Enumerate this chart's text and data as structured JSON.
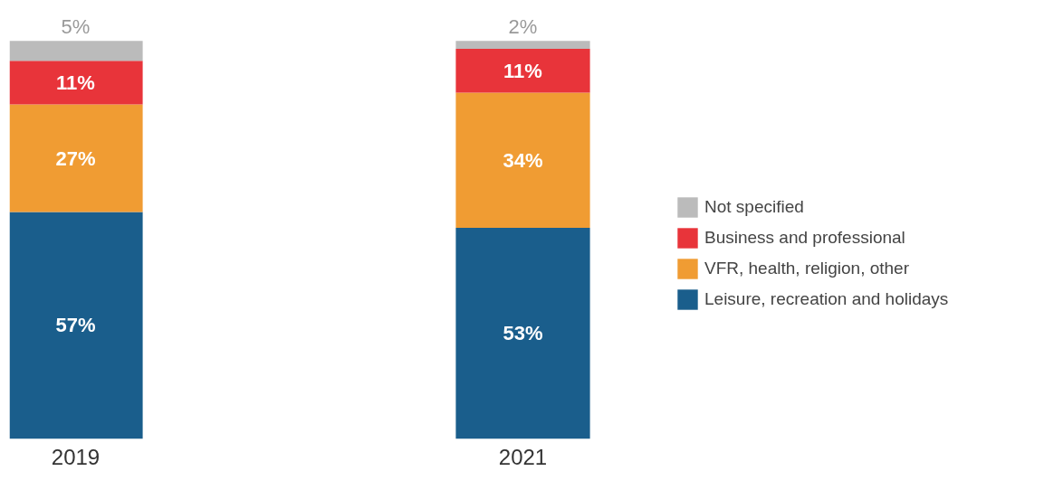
{
  "chart_data": {
    "type": "bar",
    "stacked": true,
    "categories": [
      "2019",
      "2021"
    ],
    "series": [
      {
        "name": "Leisure, recreation and holidays",
        "color": "#1a5e8c",
        "values": [
          57,
          53
        ],
        "value_labels": [
          "57%",
          "53%"
        ]
      },
      {
        "name": "VFR, health, religion, other",
        "color": "#f09c33",
        "values": [
          27,
          34
        ],
        "value_labels": [
          "27%",
          "34%"
        ]
      },
      {
        "name": "Business and professional",
        "color": "#e8343a",
        "values": [
          11,
          11
        ],
        "value_labels": [
          "11%",
          "11%"
        ]
      },
      {
        "name": "Not specified",
        "color": "#bbbbbb",
        "values": [
          5,
          2
        ],
        "value_labels": [
          "5%",
          "2%"
        ]
      }
    ],
    "data_labels": true,
    "legend": "right",
    "grid": false
  }
}
